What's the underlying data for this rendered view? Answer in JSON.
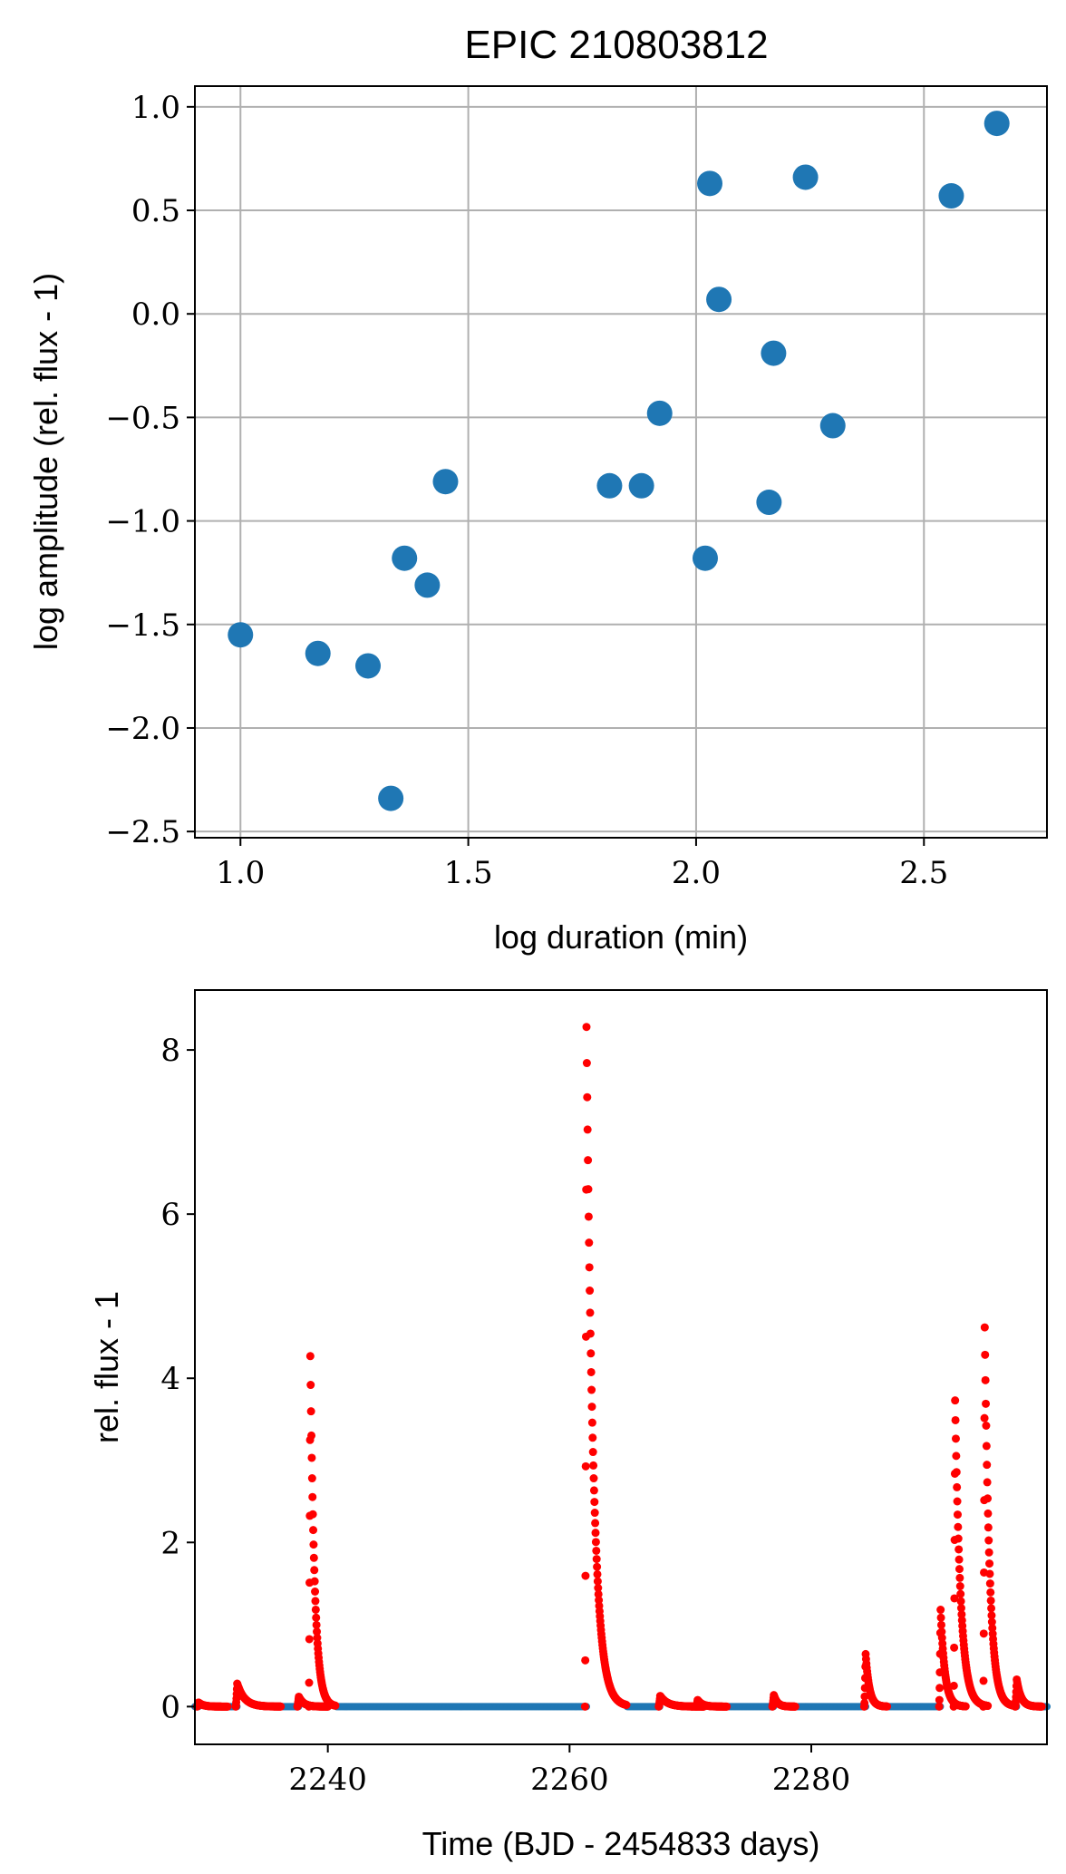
{
  "figure": {
    "title": "EPIC 210803812"
  },
  "chart_data": [
    {
      "type": "scatter",
      "title": "EPIC 210803812",
      "xlabel": "log duration (min)",
      "ylabel": "log amplitude (rel. flux - 1)",
      "xlim": [
        0.9,
        2.77
      ],
      "ylim": [
        -2.53,
        1.1
      ],
      "xticks": [
        1.0,
        1.5,
        2.0,
        2.5
      ],
      "xtick_labels": [
        "1.0",
        "1.5",
        "2.0",
        "2.5"
      ],
      "yticks": [
        -2.5,
        -2.0,
        -1.5,
        -1.0,
        -0.5,
        0.0,
        0.5,
        1.0
      ],
      "ytick_labels": [
        "−2.5",
        "−2.0",
        "−1.5",
        "−1.0",
        "−0.5",
        "0.0",
        "0.5",
        "1.0"
      ],
      "grid": true,
      "color": "#1f77b4",
      "points": [
        {
          "x": 1.0,
          "y": -1.55
        },
        {
          "x": 1.17,
          "y": -1.64
        },
        {
          "x": 1.28,
          "y": -1.7
        },
        {
          "x": 1.33,
          "y": -2.34
        },
        {
          "x": 1.36,
          "y": -1.18
        },
        {
          "x": 1.41,
          "y": -1.31
        },
        {
          "x": 1.45,
          "y": -0.81
        },
        {
          "x": 1.81,
          "y": -0.83
        },
        {
          "x": 1.88,
          "y": -0.83
        },
        {
          "x": 1.92,
          "y": -0.48
        },
        {
          "x": 2.02,
          "y": -1.18
        },
        {
          "x": 2.03,
          "y": 0.63
        },
        {
          "x": 2.05,
          "y": 0.07
        },
        {
          "x": 2.16,
          "y": -0.91
        },
        {
          "x": 2.17,
          "y": -0.19
        },
        {
          "x": 2.24,
          "y": 0.66
        },
        {
          "x": 2.3,
          "y": -0.54
        },
        {
          "x": 2.56,
          "y": 0.57
        },
        {
          "x": 2.66,
          "y": 0.92
        }
      ]
    },
    {
      "type": "scatter",
      "title": "",
      "xlabel": "Time (BJD - 2454833 days)",
      "ylabel": "rel. flux - 1",
      "xlim": [
        2229.0,
        2299.5
      ],
      "ylim": [
        -0.46,
        8.73
      ],
      "xticks": [
        2240,
        2260,
        2280
      ],
      "xtick_labels": [
        "2240",
        "2260",
        "2280"
      ],
      "yticks": [
        0,
        2,
        4,
        6,
        8
      ],
      "ytick_labels": [
        "0",
        "2",
        "4",
        "6",
        "8"
      ],
      "grid": false,
      "quiescent_color": "#1f77b4",
      "flare_color": "#ff0000",
      "quiescent_baseline": 0.0,
      "flares": [
        {
          "start": 2229.3,
          "peak": 0.05,
          "decay": 0.4
        },
        {
          "start": 2232.5,
          "peak": 0.28,
          "decay": 0.6
        },
        {
          "start": 2237.6,
          "peak": 0.12,
          "decay": 0.4
        },
        {
          "start": 2238.55,
          "peak": 4.27,
          "decay": 0.35
        },
        {
          "start": 2261.4,
          "peak": 8.28,
          "decay": 0.55
        },
        {
          "start": 2267.5,
          "peak": 0.13,
          "decay": 0.6
        },
        {
          "start": 2270.6,
          "peak": 0.08,
          "decay": 0.4
        },
        {
          "start": 2276.9,
          "peak": 0.14,
          "decay": 0.3
        },
        {
          "start": 2284.5,
          "peak": 0.64,
          "decay": 0.3
        },
        {
          "start": 2290.7,
          "peak": 1.18,
          "decay": 0.35
        },
        {
          "start": 2291.9,
          "peak": 3.73,
          "decay": 0.45
        },
        {
          "start": 2294.35,
          "peak": 4.62,
          "decay": 0.4
        },
        {
          "start": 2297.0,
          "peak": 0.33,
          "decay": 0.35
        }
      ]
    }
  ]
}
